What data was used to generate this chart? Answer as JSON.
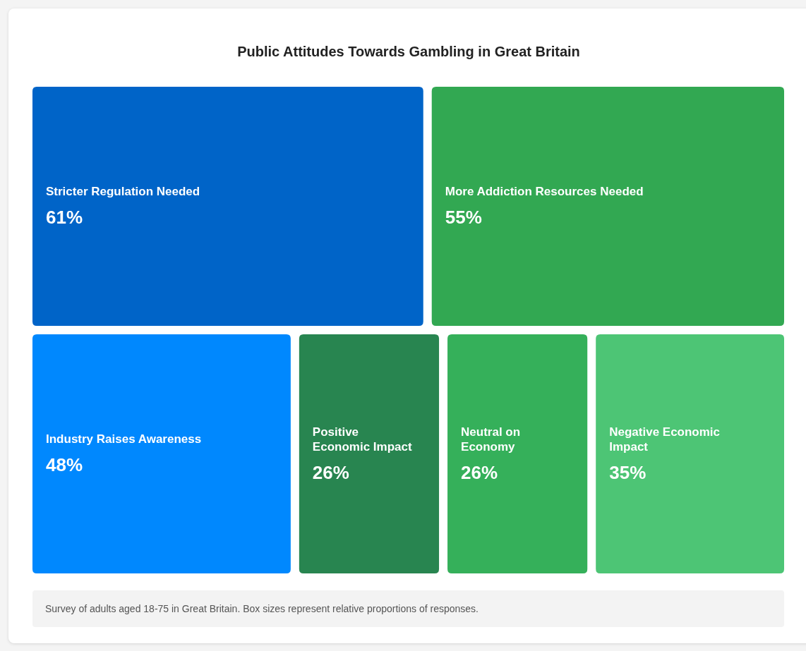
{
  "chart_data": {
    "type": "other",
    "title": "Public Attitudes Towards Gambling in Great Britain",
    "categories": [
      "Stricter Regulation Needed",
      "More Addiction Resources Needed",
      "Industry Raises Awareness",
      "Positive Economic Impact",
      "Neutral on Economy",
      "Negative Economic Impact"
    ],
    "values": [
      61,
      55,
      48,
      26,
      26,
      35
    ],
    "value_labels": [
      "61%",
      "55%",
      "48%",
      "26%",
      "26%",
      "35%"
    ],
    "colors": [
      "#0064c8",
      "#32a852",
      "#0088fe",
      "#288550",
      "#35b05a",
      "#4dc575"
    ],
    "annotations": [
      "Survey of adults aged 18-75 in Great Britain. Box sizes represent relative proportions of responses."
    ]
  }
}
